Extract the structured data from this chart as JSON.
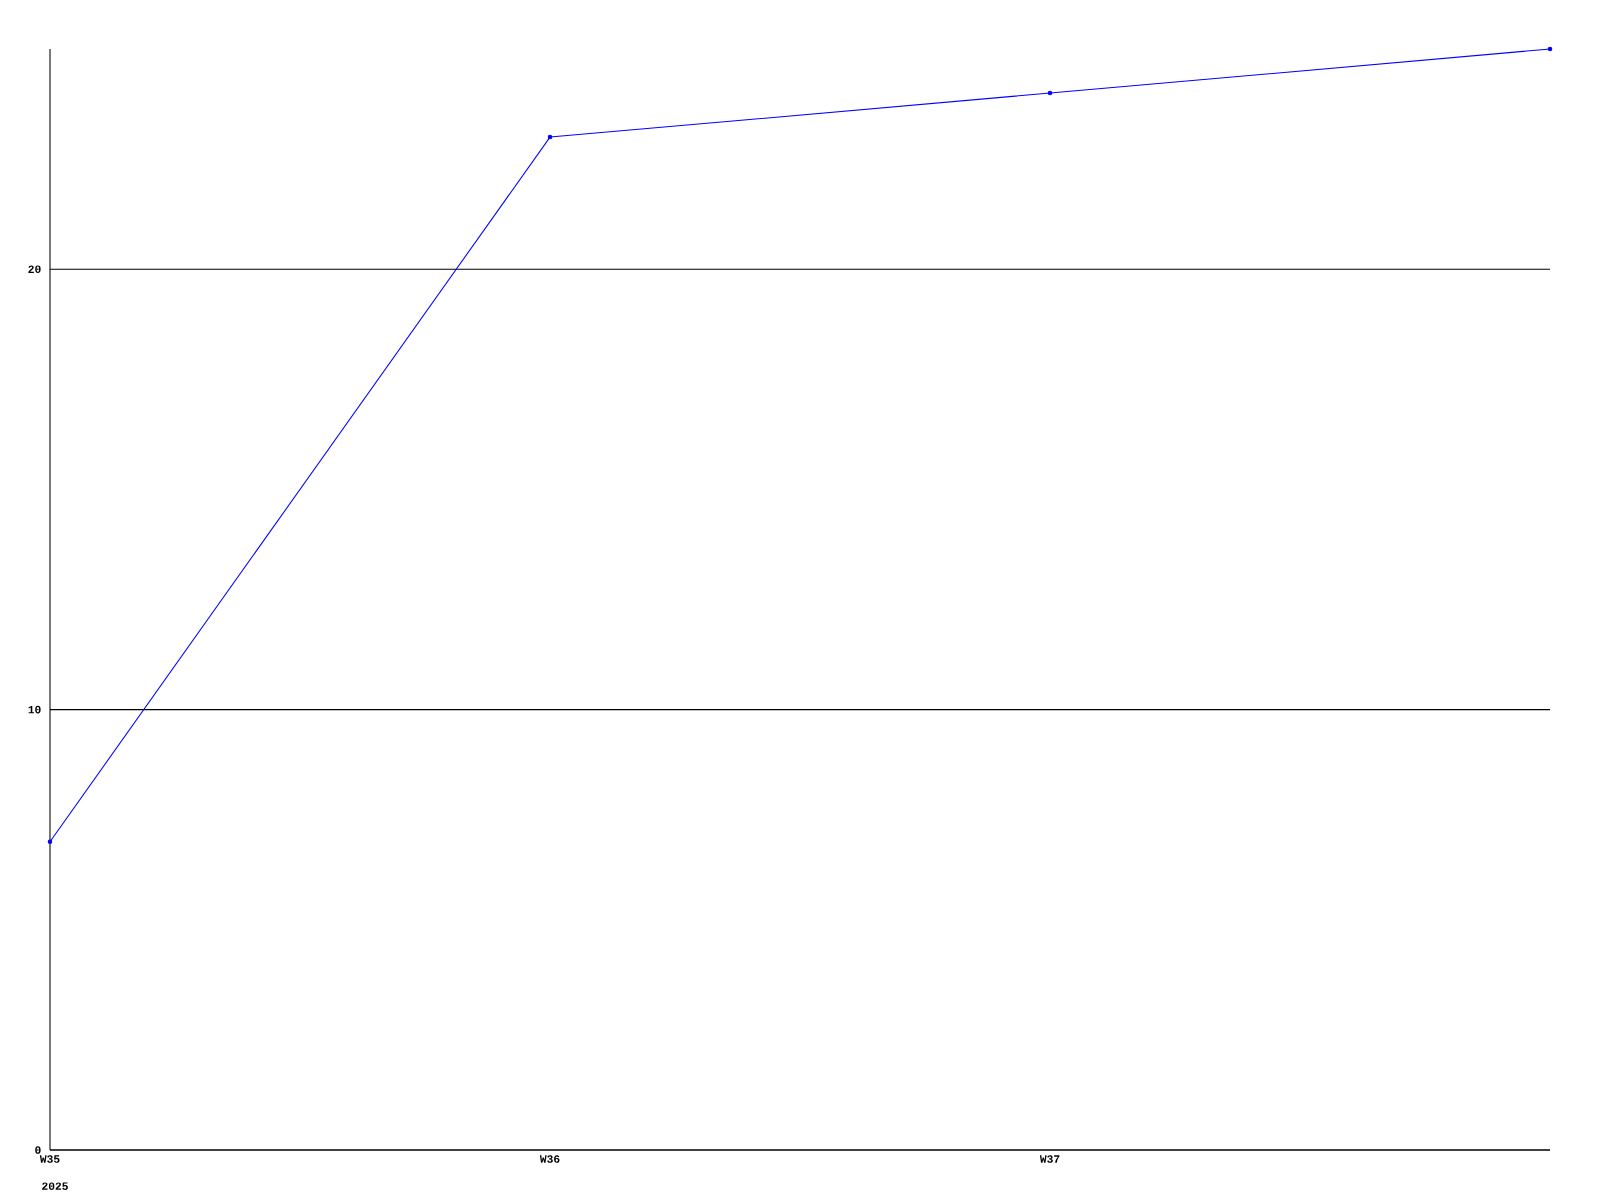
{
  "chart_data": {
    "type": "line",
    "categories": [
      "W35",
      "W36",
      "W37",
      null
    ],
    "series": [
      {
        "color": "#0000ff",
        "values": [
          7,
          23,
          24,
          25
        ]
      }
    ],
    "ylim": [
      0,
      25
    ],
    "yticks": [
      0,
      10,
      20
    ],
    "grid": "y",
    "marker": "circle",
    "line_style": "solid",
    "annotations": [
      "2025"
    ]
  }
}
